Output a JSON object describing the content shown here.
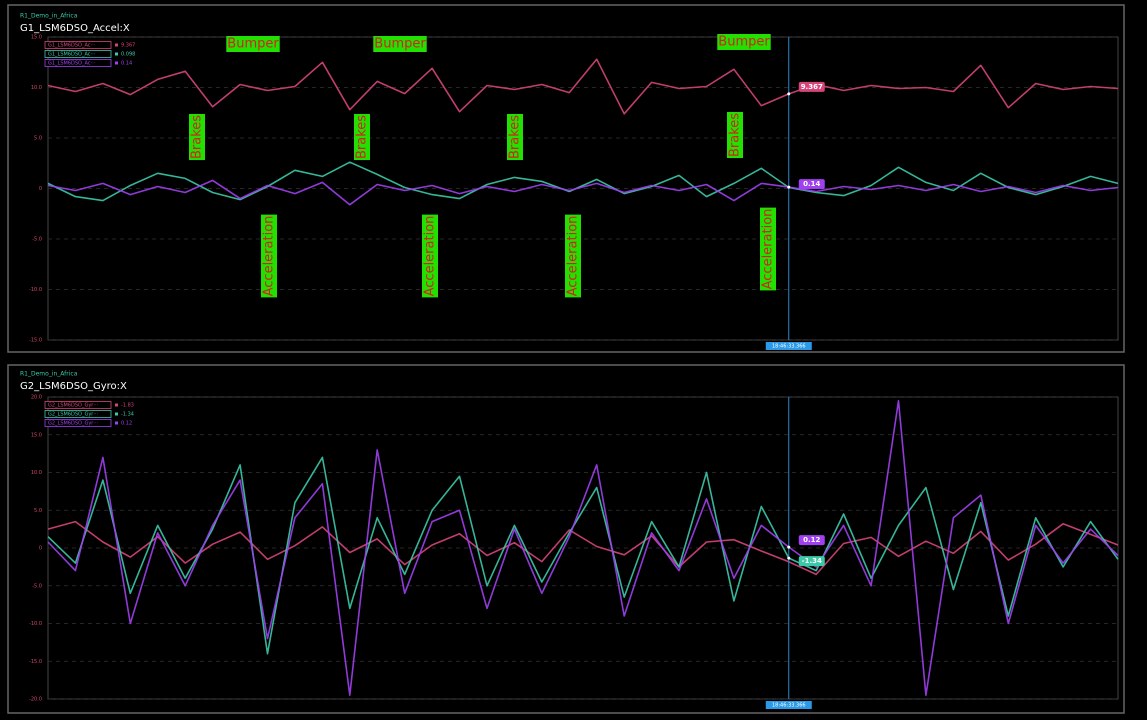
{
  "chart_data": [
    {
      "type": "line",
      "panel": "R1_Demo_in_Africa",
      "title": "G1_LSM6DSO_Accel:X",
      "cursor_time": "18:46:33.366",
      "ylim": [
        -15,
        15
      ],
      "yticks": [
        {
          "value": 15,
          "label": "15.0"
        },
        {
          "value": 10,
          "label": "10.0"
        },
        {
          "value": 5,
          "label": "5.0"
        },
        0,
        {
          "value": -5,
          "label": "-5.0"
        },
        {
          "value": -10,
          "label": "-10.0"
        },
        {
          "value": -15,
          "label": "-15.0"
        }
      ],
      "grid": true,
      "annotations": [
        "Bumper",
        "Bumper",
        "Bumper",
        "Brakes",
        "Brakes",
        "Brakes",
        "Brakes",
        "Acceleration",
        "Acceleration",
        "Acceleration",
        "Acceleration"
      ],
      "series": [
        {
          "name": "G1_LSM6DSO_Ac···",
          "color": "#d6457a",
          "cursor_value": 9.367,
          "values": [
            10.2,
            9.6,
            10.4,
            9.3,
            10.8,
            11.6,
            8.1,
            10.3,
            9.7,
            10.1,
            12.5,
            7.8,
            10.6,
            9.4,
            11.9,
            7.6,
            10.2,
            9.8,
            10.3,
            9.5,
            12.8,
            7.4,
            10.5,
            9.9,
            10.1,
            11.8,
            8.2,
            9.367,
            10.3,
            9.7,
            10.2,
            9.9,
            10.0,
            9.6,
            12.2,
            8.0,
            10.4,
            9.8,
            10.1,
            9.9
          ]
        },
        {
          "name": "G1_LSM6DSO_Ac···",
          "color": "#3cc9a8",
          "cursor_value": 0.098,
          "values": [
            0.5,
            -0.8,
            -1.2,
            0.3,
            1.5,
            1.0,
            -0.4,
            -1.1,
            0.2,
            1.8,
            1.2,
            2.6,
            1.4,
            0.1,
            -0.6,
            -1.0,
            0.4,
            1.1,
            0.7,
            -0.3,
            0.9,
            -0.5,
            0.2,
            1.3,
            -0.8,
            0.5,
            2.0,
            0.098,
            -0.4,
            -0.7,
            0.3,
            2.1,
            0.6,
            -0.2,
            1.5,
            0.1,
            -0.6,
            0.2,
            1.2,
            0.5
          ]
        },
        {
          "name": "G1_LSM6DSO_Ac···",
          "color": "#a040f0",
          "cursor_value": 0.14,
          "values": [
            0.3,
            -0.2,
            0.5,
            -0.6,
            0.2,
            -0.4,
            0.8,
            -1.0,
            0.3,
            -0.5,
            0.6,
            -1.6,
            0.4,
            -0.2,
            0.3,
            -0.5,
            0.2,
            -0.3,
            0.4,
            -0.2,
            0.5,
            -0.4,
            0.3,
            -0.2,
            0.4,
            -1.2,
            0.5,
            0.14,
            -0.3,
            0.2,
            -0.1,
            0.3,
            -0.2,
            0.4,
            -0.3,
            0.2,
            -0.4,
            0.3,
            -0.2,
            0.1
          ]
        }
      ]
    },
    {
      "type": "line",
      "panel": "R1_Demo_in_Africa",
      "title": "G2_LSM6DSO_Gyro:X",
      "cursor_time": "18:46:33.366",
      "ylim": [
        -20,
        20
      ],
      "yticks": [
        {
          "value": 20,
          "label": "20.0"
        },
        {
          "value": 15,
          "label": "15.0"
        },
        {
          "value": 10,
          "label": "10.0"
        },
        {
          "value": 5,
          "label": "5.0"
        },
        0,
        {
          "value": -5,
          "label": "-5.0"
        },
        {
          "value": -10,
          "label": "-10.0"
        },
        {
          "value": -15,
          "label": "-15.0"
        },
        {
          "value": -20,
          "label": "-20.0"
        }
      ],
      "grid": true,
      "series": [
        {
          "name": "G2_LSM6DSO_Gyr···",
          "color": "#d6457a",
          "cursor_value": -1.83,
          "values": [
            2.5,
            3.5,
            0.8,
            -1.2,
            1.5,
            -2.0,
            0.5,
            2.1,
            -1.5,
            0.3,
            2.8,
            -0.6,
            1.2,
            -2.2,
            0.4,
            1.9,
            -1.0,
            0.7,
            -1.8,
            2.4,
            0.2,
            -0.9,
            1.6,
            -2.5,
            0.8,
            1.1,
            -0.4,
            -1.83,
            -3.5,
            0.6,
            1.4,
            -1.1,
            0.9,
            -0.7,
            2.2,
            -1.6,
            0.5,
            3.2,
            1.8,
            0.4
          ]
        },
        {
          "name": "G2_LSM6DSO_Gyr···",
          "color": "#3cc9a8",
          "cursor_value": -1.34,
          "values": [
            1.5,
            -2.0,
            9.0,
            -6.0,
            3.0,
            -4.0,
            2.5,
            11.0,
            -14.0,
            6.0,
            12.0,
            -8.0,
            4.0,
            -3.5,
            5.0,
            9.5,
            -5.0,
            3.0,
            -4.5,
            2.0,
            8.0,
            -6.5,
            3.5,
            -2.5,
            10.0,
            -7.0,
            5.5,
            -1.34,
            -3.0,
            4.5,
            -4.0,
            3.0,
            8.0,
            -5.5,
            6.0,
            -9.0,
            4.0,
            -2.5,
            3.5,
            -1.5
          ]
        },
        {
          "name": "G2_LSM6DSO_Gyr···",
          "color": "#a040f0",
          "cursor_value": 0.12,
          "values": [
            0.8,
            -3.0,
            12.0,
            -10.0,
            2.0,
            -5.0,
            3.0,
            9.0,
            -12.0,
            4.0,
            8.5,
            -19.5,
            13.0,
            -6.0,
            3.5,
            5.0,
            -8.0,
            2.5,
            -6.0,
            1.5,
            11.0,
            -9.0,
            2.0,
            -3.0,
            6.5,
            -4.0,
            3.0,
            0.12,
            -2.5,
            3.0,
            -5.0,
            19.5,
            -19.5,
            4.0,
            7.0,
            -10.0,
            3.0,
            -2.0,
            2.5,
            -1.0
          ]
        }
      ]
    }
  ]
}
